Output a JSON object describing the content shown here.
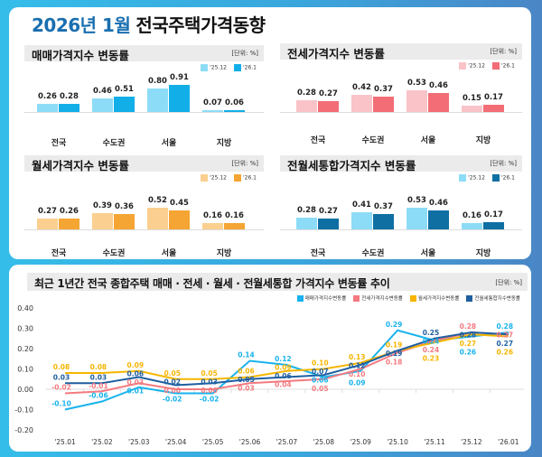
{
  "title": {
    "highlight": "2026년 1월",
    "main": "전국주택가격동향"
  },
  "unit": "[단위: %]",
  "bar_categories": [
    "전국",
    "수도권",
    "서울",
    "지방"
  ],
  "bar_legend": [
    "'25.12",
    "'26.1"
  ],
  "chart_data": [
    {
      "type": "bar",
      "title": "매매가격지수 변동률",
      "categories": [
        "전국",
        "수도권",
        "서울",
        "지방"
      ],
      "series": [
        {
          "name": "'25.12",
          "values": [
            0.26,
            0.46,
            0.8,
            0.07
          ],
          "color": "#8ddcf7"
        },
        {
          "name": "'26.1",
          "values": [
            0.28,
            0.51,
            0.91,
            0.06
          ],
          "color": "#12aee8"
        }
      ]
    },
    {
      "type": "bar",
      "title": "전세가격지수 변동률",
      "categories": [
        "전국",
        "수도권",
        "서울",
        "지방"
      ],
      "series": [
        {
          "name": "'25.12",
          "values": [
            0.28,
            0.42,
            0.53,
            0.15
          ],
          "color": "#f9c3c8"
        },
        {
          "name": "'26.1",
          "values": [
            0.27,
            0.37,
            0.46,
            0.17
          ],
          "color": "#f26d75"
        }
      ]
    },
    {
      "type": "bar",
      "title": "월세가격지수 변동률",
      "categories": [
        "전국",
        "수도권",
        "서울",
        "지방"
      ],
      "series": [
        {
          "name": "'25.12",
          "values": [
            0.27,
            0.39,
            0.52,
            0.16
          ],
          "color": "#fbcf8f"
        },
        {
          "name": "'26.1",
          "values": [
            0.26,
            0.36,
            0.45,
            0.16
          ],
          "color": "#f5a533"
        }
      ]
    },
    {
      "type": "bar",
      "title": "전월세통합가격지수 변동률",
      "categories": [
        "전국",
        "수도권",
        "서울",
        "지방"
      ],
      "series": [
        {
          "name": "'25.12",
          "values": [
            0.28,
            0.41,
            0.53,
            0.16
          ],
          "color": "#8ddcf7"
        },
        {
          "name": "'26.1",
          "values": [
            0.27,
            0.37,
            0.46,
            0.17
          ],
          "color": "#0f6fa3"
        }
      ]
    },
    {
      "type": "line",
      "title": "최근 1년간 전국 종합주택 매매 · 전세 · 월세 · 전월세통합 가격지수 변동률 추이",
      "x": [
        "'25.01",
        "'25.02",
        "'25.03",
        "'25.04",
        "'25.05",
        "'25.06",
        "'25.07",
        "'25.08",
        "'25.09",
        "'25.10",
        "'25.11",
        "'25.12",
        "'26.01"
      ],
      "ylim": [
        -0.2,
        0.4
      ],
      "yticks": [
        "0.40",
        "0.30",
        "0.20",
        "0.10",
        "0.00",
        "-0.10",
        "-0.20"
      ],
      "grid": false,
      "legend": "top-right",
      "series": [
        {
          "name": "매매가격지수변동률",
          "color": "#19b3ec",
          "values": [
            -0.1,
            -0.06,
            0.01,
            -0.02,
            -0.02,
            0.14,
            0.12,
            0.06,
            0.09,
            0.29,
            0.24,
            0.26,
            0.28
          ]
        },
        {
          "name": "전세가격지수변동률",
          "color": "#f47a80",
          "values": [
            -0.02,
            -0.01,
            0.03,
            0.0,
            0.0,
            0.03,
            0.04,
            0.05,
            0.1,
            0.18,
            0.24,
            0.28,
            0.27
          ]
        },
        {
          "name": "월세가격지수변동률",
          "color": "#f7b500",
          "values": [
            0.08,
            0.08,
            0.09,
            0.05,
            0.05,
            0.06,
            0.09,
            0.1,
            0.13,
            0.19,
            0.23,
            0.27,
            0.26
          ]
        },
        {
          "name": "전월세통합지수변동률",
          "color": "#1f5fa0",
          "values": [
            0.03,
            0.03,
            0.06,
            0.02,
            0.03,
            0.05,
            0.06,
            0.07,
            0.12,
            0.19,
            0.25,
            0.28,
            0.27
          ]
        }
      ]
    }
  ]
}
